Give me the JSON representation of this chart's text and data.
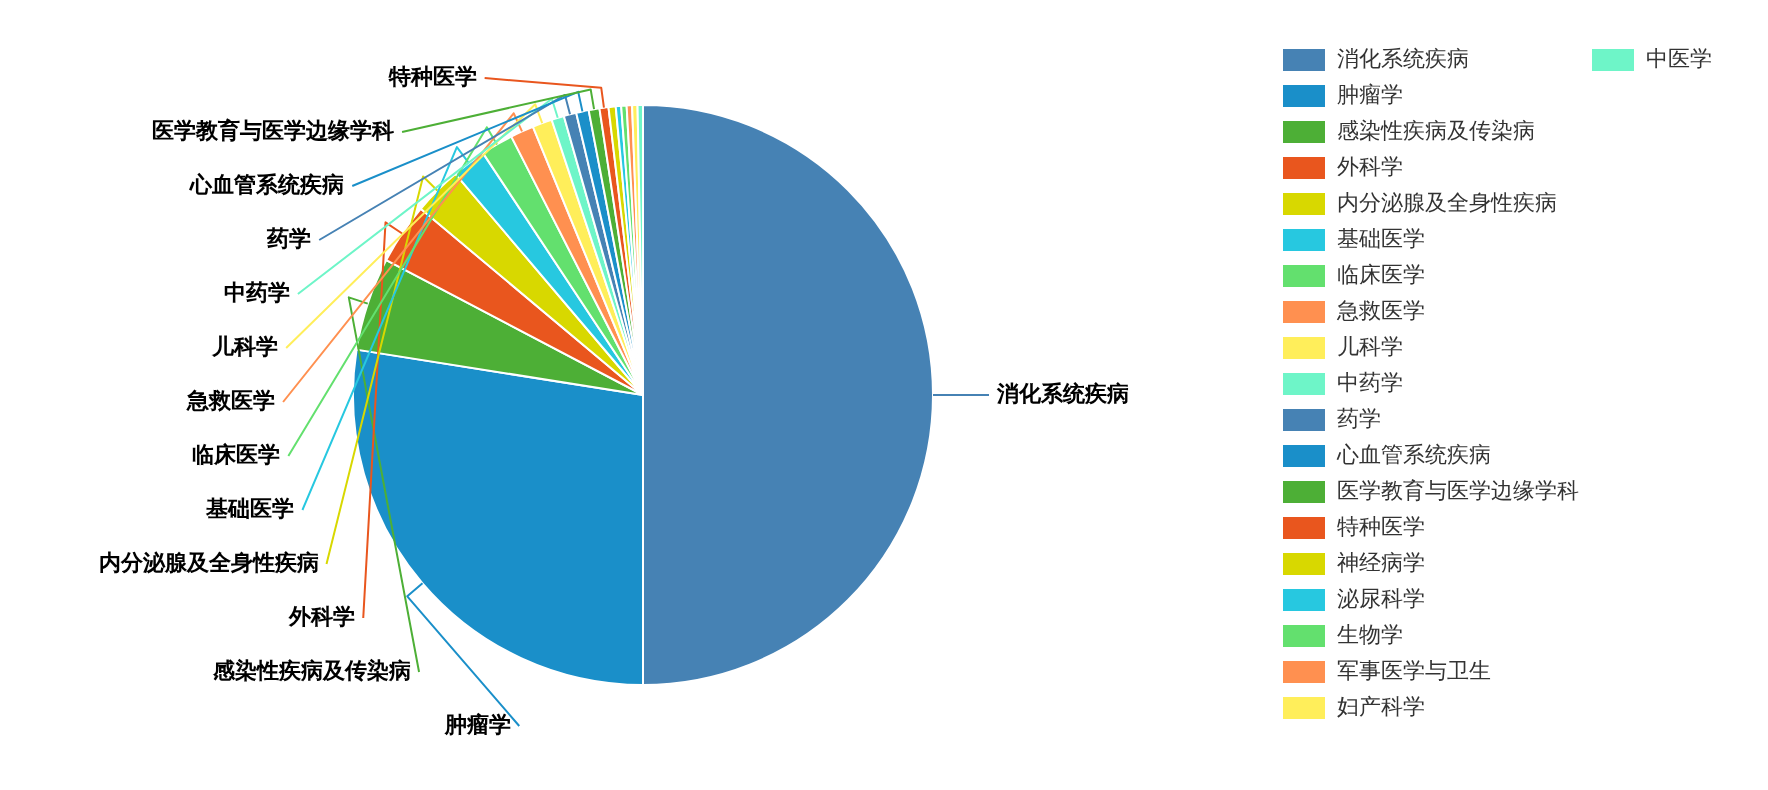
{
  "chart_data": {
    "type": "pie",
    "legend": "right",
    "categories": [
      "消化系统疾病",
      "肿瘤学",
      "感染性疾病及传染病",
      "外科学",
      "内分泌腺及全身性疾病",
      "基础医学",
      "临床医学",
      "急救医学",
      "儿科学",
      "中药学",
      "药学",
      "心血管系统疾病",
      "医学教育与医学边缘学科",
      "特种医学",
      "神经病学",
      "泌尿科学",
      "生物学",
      "军事医学与卫生",
      "妇产科学",
      "中医学"
    ],
    "values": [
      50,
      27.5,
      5.2,
      3.4,
      2.7,
      1.9,
      1.8,
      1.3,
      1.1,
      0.7,
      0.7,
      0.7,
      0.6,
      0.5,
      0.4,
      0.3,
      0.3,
      0.3,
      0.3,
      0.3
    ],
    "colors": [
      "#4682b4",
      "#1a8fc9",
      "#4daf36",
      "#e9561e",
      "#d8d800",
      "#27c8e0",
      "#63e06e",
      "#ff9050",
      "#ffee5a",
      "#6ef5c8",
      "#4682b4",
      "#1a8fc9",
      "#4daf36",
      "#e9561e",
      "#d8d800",
      "#27c8e0",
      "#63e06e",
      "#ff9050",
      "#ffee5a",
      "#6ef5c8"
    ]
  }
}
